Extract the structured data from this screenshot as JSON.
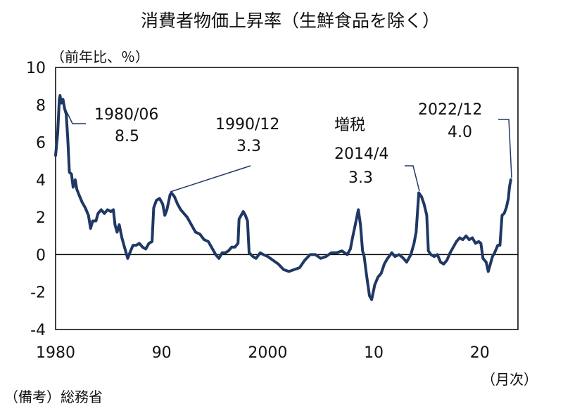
{
  "chart_data": {
    "type": "line",
    "title": "消費者物価上昇率（生鮮食品を除く）",
    "ylabel": "（前年比、％）",
    "xlabel": "（月次）",
    "source_note": "（備考）総務省",
    "xlim": [
      1980.0,
      2023.6
    ],
    "ylim": [
      -4,
      10
    ],
    "y_ticks": [
      "10",
      "8",
      "6",
      "4",
      "2",
      "0",
      "-2",
      "-4"
    ],
    "x_ticks": [
      {
        "x": 1980,
        "label": "1980"
      },
      {
        "x": 1990,
        "label": "90"
      },
      {
        "x": 2000,
        "label": "2000"
      },
      {
        "x": 2010,
        "label": "10"
      },
      {
        "x": 2020,
        "label": "20"
      }
    ],
    "grid": false,
    "zero_line": true,
    "line_color": "#1f3864",
    "annotations": [
      {
        "label": "1980/06",
        "value": "8.5",
        "x": 1980.42,
        "y": 8.5
      },
      {
        "label": "1990/12",
        "value": "3.3",
        "x": 1990.92,
        "y": 3.3
      },
      {
        "label": "増税",
        "sub_label": "2014/4",
        "value": "3.3",
        "x": 2014.25,
        "y": 3.3
      },
      {
        "label": "2022/12",
        "value": "4.0",
        "x": 2022.92,
        "y": 4.0
      }
    ],
    "series": [
      {
        "values": [
          [
            1980.0,
            5.3
          ],
          [
            1980.2,
            6.5
          ],
          [
            1980.35,
            8.3
          ],
          [
            1980.42,
            8.5
          ],
          [
            1980.55,
            8.1
          ],
          [
            1980.7,
            8.3
          ],
          [
            1980.85,
            7.8
          ],
          [
            1981.0,
            7.5
          ],
          [
            1981.15,
            6.2
          ],
          [
            1981.3,
            4.4
          ],
          [
            1981.5,
            4.3
          ],
          [
            1981.65,
            3.6
          ],
          [
            1981.85,
            4.0
          ],
          [
            1982.0,
            3.5
          ],
          [
            1982.2,
            3.2
          ],
          [
            1982.5,
            2.8
          ],
          [
            1982.8,
            2.5
          ],
          [
            1983.1,
            2.1
          ],
          [
            1983.3,
            1.4
          ],
          [
            1983.5,
            1.8
          ],
          [
            1983.8,
            1.8
          ],
          [
            1984.0,
            2.2
          ],
          [
            1984.3,
            2.4
          ],
          [
            1984.6,
            2.2
          ],
          [
            1984.9,
            2.4
          ],
          [
            1985.2,
            2.3
          ],
          [
            1985.45,
            2.4
          ],
          [
            1985.6,
            1.6
          ],
          [
            1985.8,
            1.2
          ],
          [
            1986.0,
            1.6
          ],
          [
            1986.25,
            0.9
          ],
          [
            1986.5,
            0.4
          ],
          [
            1986.8,
            -0.2
          ],
          [
            1987.0,
            0.1
          ],
          [
            1987.3,
            0.5
          ],
          [
            1987.6,
            0.5
          ],
          [
            1987.9,
            0.6
          ],
          [
            1988.2,
            0.4
          ],
          [
            1988.5,
            0.3
          ],
          [
            1988.8,
            0.6
          ],
          [
            1989.1,
            0.7
          ],
          [
            1989.25,
            2.5
          ],
          [
            1989.5,
            2.9
          ],
          [
            1989.8,
            3.0
          ],
          [
            1990.1,
            2.7
          ],
          [
            1990.3,
            2.1
          ],
          [
            1990.5,
            2.4
          ],
          [
            1990.8,
            3.2
          ],
          [
            1990.92,
            3.3
          ],
          [
            1991.2,
            3.1
          ],
          [
            1991.5,
            2.7
          ],
          [
            1991.8,
            2.4
          ],
          [
            1992.1,
            2.2
          ],
          [
            1992.4,
            2.0
          ],
          [
            1992.8,
            1.6
          ],
          [
            1993.2,
            1.2
          ],
          [
            1993.6,
            1.1
          ],
          [
            1994.0,
            0.8
          ],
          [
            1994.4,
            0.7
          ],
          [
            1994.8,
            0.3
          ],
          [
            1995.1,
            0.0
          ],
          [
            1995.4,
            -0.2
          ],
          [
            1995.7,
            0.1
          ],
          [
            1996.0,
            0.1
          ],
          [
            1996.3,
            0.2
          ],
          [
            1996.6,
            0.4
          ],
          [
            1996.9,
            0.4
          ],
          [
            1997.2,
            0.6
          ],
          [
            1997.3,
            1.9
          ],
          [
            1997.5,
            2.1
          ],
          [
            1997.7,
            2.3
          ],
          [
            1997.9,
            2.1
          ],
          [
            1998.1,
            1.8
          ],
          [
            1998.25,
            0.1
          ],
          [
            1998.6,
            -0.1
          ],
          [
            1998.9,
            -0.2
          ],
          [
            1999.3,
            0.1
          ],
          [
            1999.6,
            0.0
          ],
          [
            2000.0,
            -0.1
          ],
          [
            2000.5,
            -0.3
          ],
          [
            2001.0,
            -0.5
          ],
          [
            2001.5,
            -0.8
          ],
          [
            2002.0,
            -0.9
          ],
          [
            2002.5,
            -0.8
          ],
          [
            2003.0,
            -0.7
          ],
          [
            2003.5,
            -0.3
          ],
          [
            2004.0,
            0.0
          ],
          [
            2004.5,
            0.0
          ],
          [
            2005.0,
            -0.2
          ],
          [
            2005.5,
            -0.1
          ],
          [
            2006.0,
            0.1
          ],
          [
            2006.5,
            0.1
          ],
          [
            2007.0,
            0.2
          ],
          [
            2007.5,
            0.0
          ],
          [
            2007.8,
            0.3
          ],
          [
            2008.0,
            0.9
          ],
          [
            2008.3,
            1.7
          ],
          [
            2008.55,
            2.4
          ],
          [
            2008.75,
            1.6
          ],
          [
            2008.95,
            0.2
          ],
          [
            2009.1,
            -0.1
          ],
          [
            2009.3,
            -1.0
          ],
          [
            2009.6,
            -2.2
          ],
          [
            2009.8,
            -2.4
          ],
          [
            2010.1,
            -1.6
          ],
          [
            2010.4,
            -1.2
          ],
          [
            2010.7,
            -1.0
          ],
          [
            2011.0,
            -0.5
          ],
          [
            2011.3,
            -0.2
          ],
          [
            2011.7,
            0.1
          ],
          [
            2012.0,
            -0.1
          ],
          [
            2012.4,
            0.0
          ],
          [
            2012.8,
            -0.2
          ],
          [
            2013.1,
            -0.4
          ],
          [
            2013.5,
            0.0
          ],
          [
            2013.8,
            0.6
          ],
          [
            2014.0,
            1.2
          ],
          [
            2014.25,
            3.3
          ],
          [
            2014.5,
            3.1
          ],
          [
            2014.75,
            2.7
          ],
          [
            2015.0,
            2.1
          ],
          [
            2015.15,
            0.2
          ],
          [
            2015.4,
            0.0
          ],
          [
            2015.7,
            -0.1
          ],
          [
            2016.0,
            0.0
          ],
          [
            2016.3,
            -0.4
          ],
          [
            2016.6,
            -0.5
          ],
          [
            2016.9,
            -0.3
          ],
          [
            2017.2,
            0.1
          ],
          [
            2017.5,
            0.4
          ],
          [
            2017.8,
            0.7
          ],
          [
            2018.1,
            0.9
          ],
          [
            2018.4,
            0.8
          ],
          [
            2018.7,
            1.0
          ],
          [
            2019.0,
            0.8
          ],
          [
            2019.3,
            0.9
          ],
          [
            2019.6,
            0.6
          ],
          [
            2019.9,
            0.7
          ],
          [
            2020.1,
            0.6
          ],
          [
            2020.3,
            -0.2
          ],
          [
            2020.6,
            -0.4
          ],
          [
            2020.8,
            -0.9
          ],
          [
            2021.0,
            -0.5
          ],
          [
            2021.2,
            -0.1
          ],
          [
            2021.4,
            0.1
          ],
          [
            2021.7,
            0.5
          ],
          [
            2021.9,
            0.5
          ],
          [
            2022.1,
            2.1
          ],
          [
            2022.3,
            2.2
          ],
          [
            2022.5,
            2.5
          ],
          [
            2022.7,
            3.0
          ],
          [
            2022.8,
            3.6
          ],
          [
            2022.92,
            4.0
          ]
        ]
      }
    ]
  }
}
